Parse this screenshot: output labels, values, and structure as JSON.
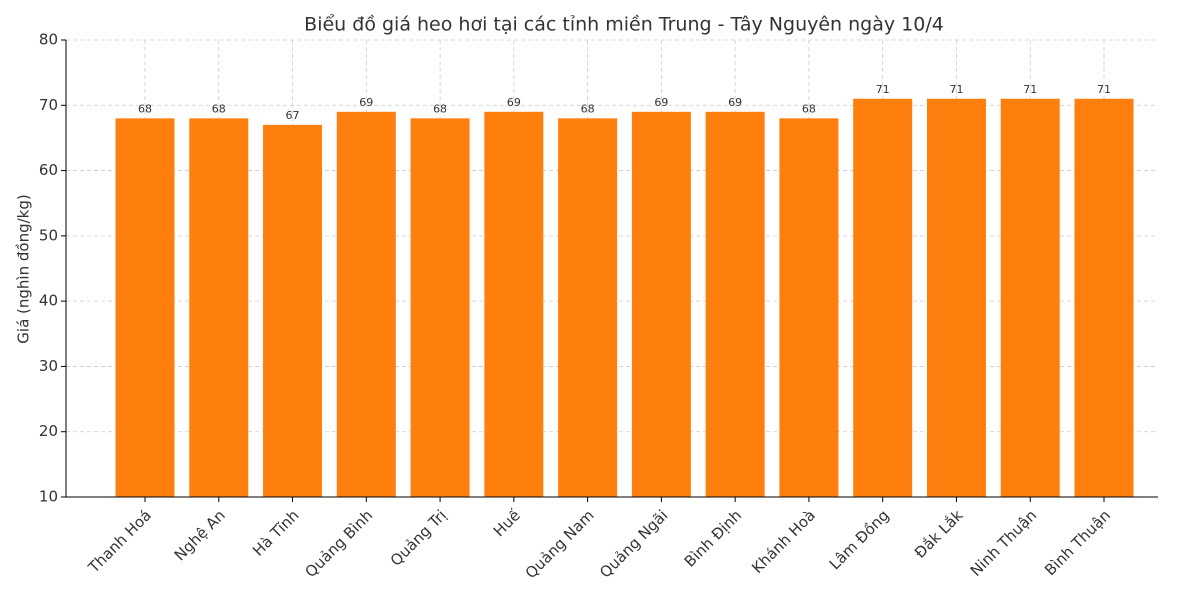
{
  "chart_data": {
    "type": "bar",
    "title": "Biểu đồ giá heo hơi tại các tỉnh miền Trung - Tây Nguyên ngày 10/4",
    "y_label": "Giá (nghìn đồng/kg)",
    "categories": [
      "Thanh Hoá",
      "Nghệ An",
      "Hà Tĩnh",
      "Quảng Bình",
      "Quảng Trị",
      "Huế",
      "Quảng Nam",
      "Quảng Ngãi",
      "Bình Định",
      "Khánh Hoà",
      "Lâm Đồng",
      "Đắk Lắk",
      "Ninh Thuận",
      "Bình Thuận"
    ],
    "values": [
      68,
      68,
      67,
      69,
      68,
      69,
      68,
      69,
      69,
      68,
      71,
      71,
      71,
      71
    ],
    "color": "#ff7f0e",
    "ylim": [
      10,
      80
    ],
    "yticks": [
      10,
      20,
      30,
      40,
      50,
      60,
      70,
      80
    ],
    "grid": true
  }
}
